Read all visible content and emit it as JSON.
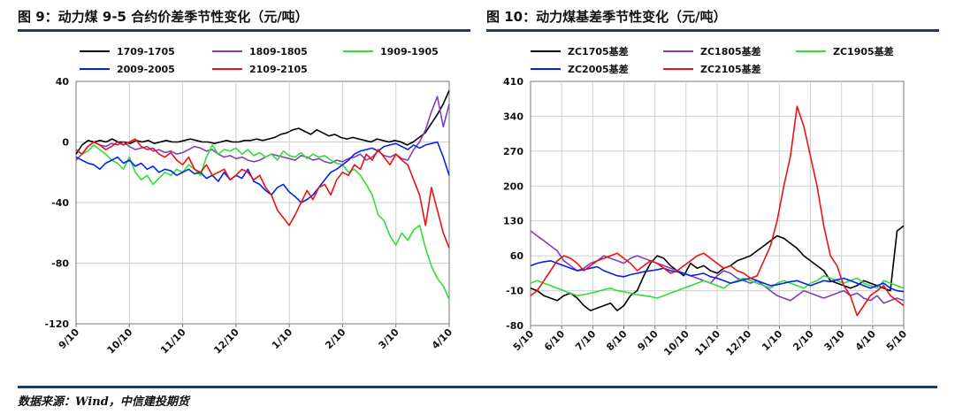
{
  "left": {
    "title": "图 9：动力煤 9-5 合约价差季节性变化（元/吨）",
    "chart_data": {
      "type": "line",
      "ylim": [
        -120,
        40
      ],
      "yticks": [
        40,
        0,
        -40,
        -80,
        -120
      ],
      "xticks": [
        "9/10",
        "10/10",
        "11/10",
        "12/10",
        "1/10",
        "2/10",
        "3/10",
        "4/10"
      ],
      "grid": true,
      "legend": "top",
      "series": [
        {
          "name": "1709-1705",
          "color": "#000000",
          "values": [
            -8,
            -2,
            1,
            0,
            1,
            0,
            2,
            0,
            0,
            -1,
            1,
            0,
            1,
            -1,
            0,
            1,
            0,
            0,
            1,
            2,
            1,
            0,
            0,
            -1,
            0,
            1,
            0,
            0,
            1,
            1,
            2,
            1,
            2,
            3,
            5,
            6,
            8,
            9,
            7,
            5,
            8,
            6,
            4,
            5,
            3,
            2,
            3,
            2,
            1,
            0,
            2,
            1,
            0,
            1,
            0,
            -2,
            0,
            3,
            6,
            12,
            18,
            25,
            34
          ]
        },
        {
          "name": "1809-1805",
          "color": "#7f3fbf",
          "values": [
            -12,
            -8,
            -3,
            0,
            -2,
            -3,
            -1,
            -2,
            0,
            -3,
            -5,
            -4,
            -3,
            -6,
            -5,
            -7,
            -6,
            -8,
            -7,
            -5,
            -3,
            -4,
            -6,
            -5,
            -8,
            -10,
            -9,
            -11,
            -10,
            -12,
            -13,
            -12,
            -10,
            -8,
            -9,
            -10,
            -11,
            -12,
            -9,
            -10,
            -12,
            -11,
            -13,
            -14,
            -12,
            -13,
            -11,
            -10,
            -8,
            -12,
            -10,
            -6,
            -9,
            -10,
            -8,
            -11,
            -12,
            -5,
            0,
            8,
            20,
            30,
            10,
            25
          ]
        },
        {
          "name": "1909-1905",
          "color": "#33dd33",
          "values": [
            -5,
            -8,
            -6,
            -2,
            -5,
            -8,
            -12,
            -14,
            -18,
            -10,
            -20,
            -25,
            -22,
            -28,
            -24,
            -20,
            -22,
            -18,
            -20,
            -15,
            -18,
            -22,
            -10,
            -2,
            -8,
            -5,
            -6,
            -4,
            -8,
            -5,
            -9,
            -7,
            -10,
            -8,
            -12,
            -6,
            -9,
            -10,
            -7,
            -11,
            -8,
            -10,
            -9,
            -12,
            -14,
            -15,
            -20,
            -18,
            -22,
            -28,
            -35,
            -48,
            -52,
            -62,
            -68,
            -60,
            -65,
            -58,
            -55,
            -70,
            -82,
            -90,
            -95,
            -104
          ]
        },
        {
          "name": "2009-2005",
          "color": "#0022ee",
          "values": [
            -10,
            -12,
            -14,
            -15,
            -18,
            -14,
            -12,
            -10,
            -14,
            -12,
            -16,
            -14,
            -18,
            -16,
            -20,
            -18,
            -19,
            -22,
            -20,
            -18,
            -21,
            -20,
            -24,
            -22,
            -26,
            -20,
            -25,
            -22,
            -24,
            -18,
            -26,
            -28,
            -32,
            -35,
            -30,
            -28,
            -33,
            -36,
            -40,
            -38,
            -35,
            -30,
            -25,
            -20,
            -18,
            -15,
            -12,
            -8,
            -6,
            -5,
            -4,
            -6,
            -3,
            -2,
            -1,
            -3,
            -5,
            -2,
            -4,
            -2,
            -1,
            0,
            -10,
            -22
          ]
        },
        {
          "name": "2109-2105",
          "color": "#ee1111",
          "values": [
            -5,
            -8,
            -3,
            0,
            -2,
            -5,
            -3,
            0,
            -2,
            0,
            2,
            -3,
            -5,
            -4,
            -8,
            -10,
            -7,
            -12,
            -15,
            -10,
            -18,
            -20,
            -15,
            -22,
            -20,
            -18,
            -25,
            -22,
            -18,
            -20,
            -25,
            -22,
            -30,
            -35,
            -45,
            -50,
            -55,
            -48,
            -40,
            -32,
            -38,
            -30,
            -28,
            -35,
            -25,
            -20,
            -22,
            -15,
            -18,
            -8,
            -12,
            -5,
            -10,
            -15,
            -8,
            -12,
            -15,
            -25,
            -35,
            -55,
            -30,
            -45,
            -60,
            -70
          ]
        }
      ]
    }
  },
  "right": {
    "title": "图 10：动力煤基差季节性变化（元/吨）",
    "chart_data": {
      "type": "line",
      "ylim": [
        -80,
        410
      ],
      "yticks": [
        410,
        340,
        270,
        200,
        130,
        60,
        -10,
        -80
      ],
      "xticks": [
        "5/10",
        "6/10",
        "7/10",
        "8/10",
        "9/10",
        "10/10",
        "11/10",
        "12/10",
        "1/10",
        "2/10",
        "3/10",
        "4/10",
        "5/10"
      ],
      "grid": true,
      "legend": "top",
      "series": [
        {
          "name": "ZC1705基差",
          "color": "#000000",
          "values": [
            -5,
            -10,
            -20,
            -25,
            -30,
            -20,
            -15,
            -25,
            -40,
            -50,
            -45,
            -40,
            -35,
            -50,
            -40,
            -20,
            -10,
            20,
            45,
            60,
            55,
            40,
            30,
            20,
            45,
            35,
            40,
            30,
            25,
            35,
            40,
            50,
            55,
            60,
            70,
            80,
            90,
            100,
            95,
            85,
            75,
            60,
            50,
            40,
            30,
            10,
            5,
            0,
            -5,
            0,
            10,
            5,
            0,
            -5,
            -10,
            110,
            120
          ]
        },
        {
          "name": "ZC1805基差",
          "color": "#7f3fbf",
          "values": [
            110,
            100,
            90,
            80,
            70,
            50,
            40,
            30,
            35,
            45,
            50,
            60,
            55,
            50,
            45,
            55,
            60,
            55,
            50,
            45,
            40,
            35,
            30,
            25,
            20,
            15,
            10,
            5,
            20,
            30,
            25,
            15,
            10,
            5,
            10,
            0,
            -10,
            -20,
            -25,
            -30,
            -20,
            -10,
            -15,
            -20,
            -25,
            -20,
            -15,
            -10,
            -20,
            -15,
            -25,
            -30,
            -20,
            -35,
            -30,
            -25,
            -30
          ]
        },
        {
          "name": "ZC1905基差",
          "color": "#33dd33",
          "values": [
            5,
            10,
            5,
            0,
            -5,
            -10,
            -15,
            -20,
            -18,
            -15,
            -12,
            -8,
            -5,
            -10,
            -12,
            -15,
            -18,
            -20,
            -22,
            -25,
            -20,
            -15,
            -10,
            -5,
            0,
            5,
            10,
            5,
            0,
            -5,
            5,
            10,
            15,
            10,
            5,
            0,
            -5,
            5,
            10,
            5,
            0,
            -5,
            5,
            10,
            20,
            15,
            10,
            5,
            10,
            15,
            5,
            0,
            -5,
            10,
            5,
            0,
            -5
          ]
        },
        {
          "name": "ZC2005基差",
          "color": "#0022ee",
          "values": [
            40,
            45,
            48,
            50,
            45,
            40,
            35,
            30,
            32,
            35,
            38,
            30,
            25,
            20,
            18,
            22,
            25,
            28,
            30,
            32,
            35,
            30,
            28,
            25,
            20,
            22,
            25,
            18,
            15,
            10,
            5,
            8,
            12,
            15,
            10,
            5,
            0,
            2,
            5,
            8,
            10,
            5,
            0,
            5,
            10,
            8,
            12,
            15,
            10,
            5,
            0,
            -5,
            0,
            5,
            -5,
            -10,
            -12
          ]
        },
        {
          "name": "ZC2105基差",
          "color": "#ee1111",
          "values": [
            -20,
            -10,
            10,
            30,
            50,
            60,
            55,
            45,
            30,
            40,
            50,
            55,
            60,
            65,
            55,
            45,
            30,
            40,
            50,
            45,
            35,
            25,
            30,
            40,
            50,
            60,
            65,
            55,
            45,
            35,
            40,
            30,
            25,
            15,
            20,
            50,
            80,
            130,
            200,
            260,
            360,
            320,
            260,
            200,
            120,
            60,
            40,
            0,
            -20,
            -60,
            -40,
            -20,
            -10,
            0,
            -20,
            -30,
            -40
          ]
        }
      ]
    }
  },
  "source": "数据来源：Wind，中信建投期货"
}
